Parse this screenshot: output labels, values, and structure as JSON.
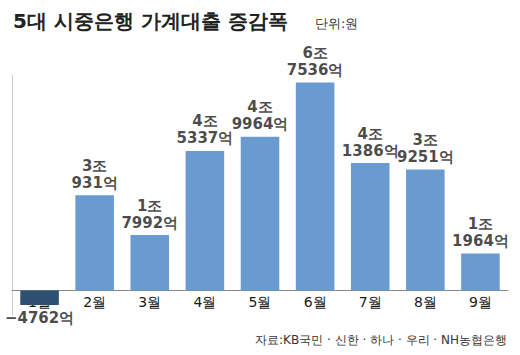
{
  "chart_data": {
    "type": "bar",
    "title": "5대 시중은행 가계대출 증감폭",
    "subtitle": "단위:원",
    "annotations": [
      "자료:KB국민 · 신한 · 하나 · 우리 · NH농협은행"
    ],
    "categories": [
      "1월",
      "2월",
      "3월",
      "4월",
      "5월",
      "6월",
      "7월",
      "8월",
      "9월"
    ],
    "values": [
      -4762,
      30931,
      17992,
      45337,
      49964,
      67536,
      41386,
      39251,
      11964
    ],
    "value_labels": [
      "−4762억",
      "3조\n931억",
      "1조\n7992억",
      "4조\n5337억",
      "4조\n9964억",
      "6조\n7536억",
      "4조\n1386억",
      "3조\n9251억",
      "1조\n1964억"
    ],
    "colors": [
      "#2e4f70",
      "#6a9bd0",
      "#6a9bd0",
      "#6a9bd0",
      "#6a9bd0",
      "#6a9bd0",
      "#6a9bd0",
      "#6a9bd0",
      "#6a9bd0"
    ],
    "ylim": [
      -8000,
      70000
    ],
    "grid": false,
    "data_labels": true,
    "tick_labels": "x"
  }
}
